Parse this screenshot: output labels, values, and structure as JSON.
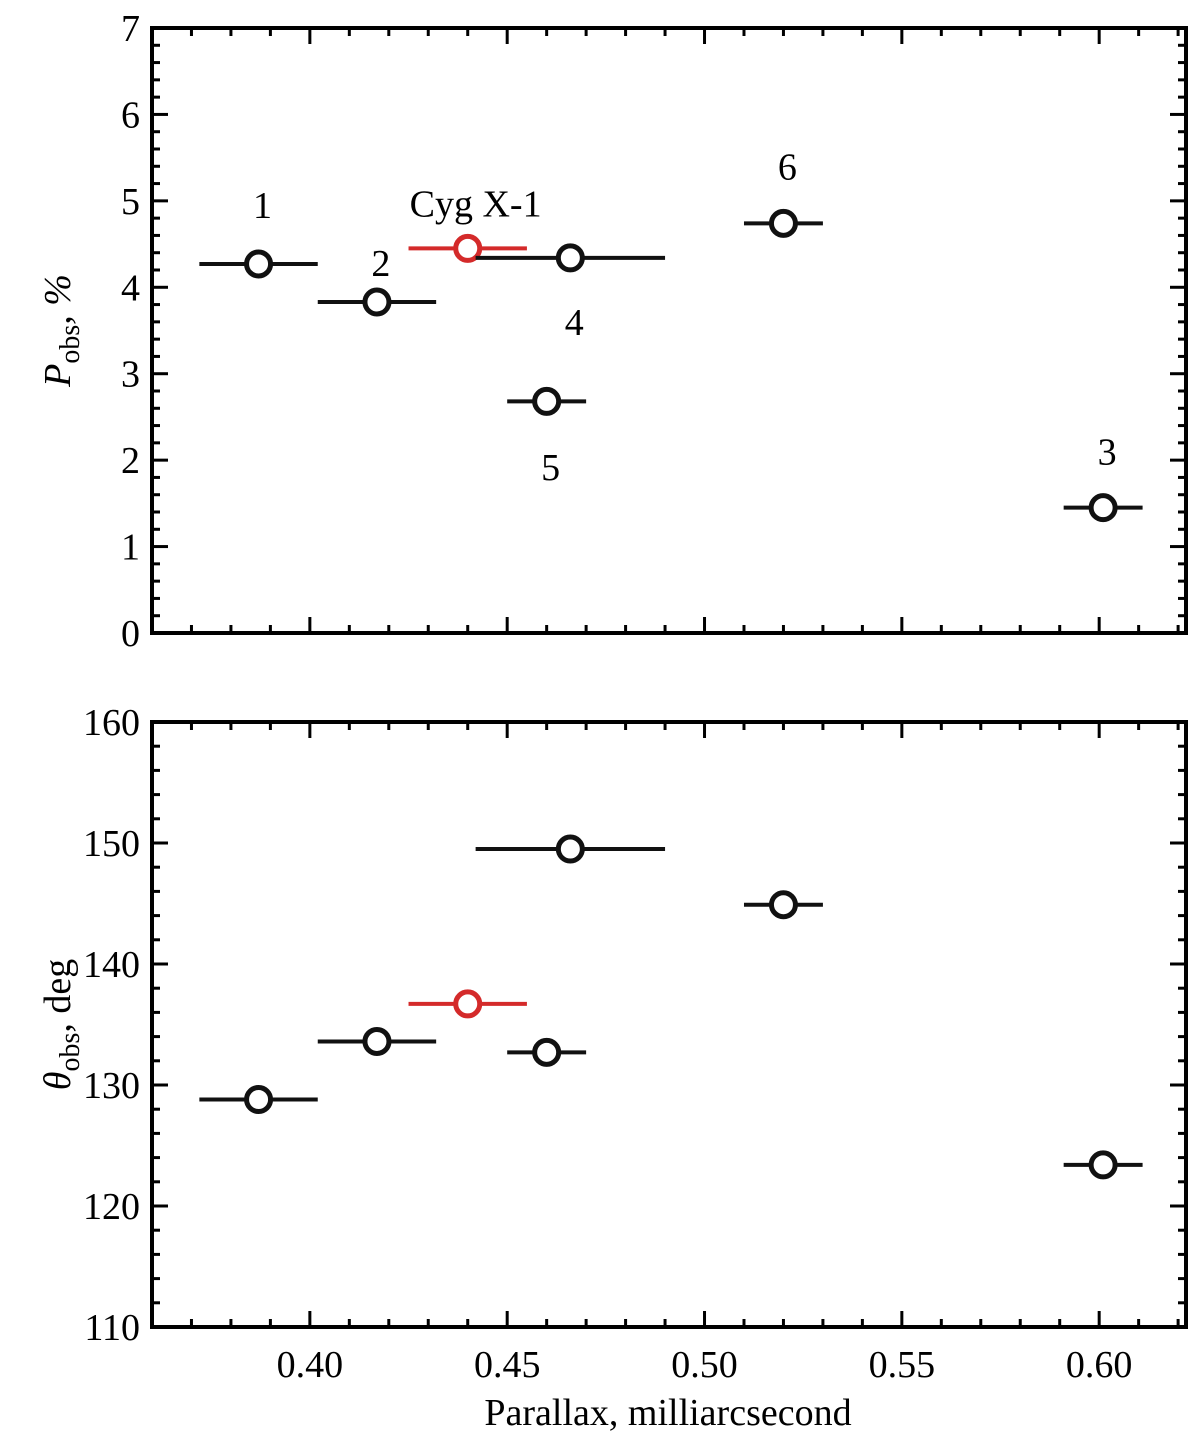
{
  "chart_data": [
    {
      "type": "scatter",
      "panel": "top",
      "ylabel": {
        "main": "P",
        "sub": "obs",
        "rest": ", %"
      },
      "xlim": [
        0.36,
        0.622
      ],
      "ylim": [
        0,
        7
      ],
      "yticks": [
        0,
        1,
        2,
        3,
        4,
        5,
        6,
        7
      ],
      "xticks": [
        0.4,
        0.45,
        0.5,
        0.55,
        0.6
      ],
      "points": [
        {
          "label": "1",
          "x": 0.387,
          "xerr_lo": 0.015,
          "xerr_hi": 0.015,
          "y": 4.27,
          "color": "#111111"
        },
        {
          "label": "2",
          "x": 0.417,
          "xerr_lo": 0.015,
          "xerr_hi": 0.015,
          "y": 3.83,
          "color": "#111111"
        },
        {
          "label": "Cyg X-1",
          "x": 0.44,
          "xerr_lo": 0.015,
          "xerr_hi": 0.015,
          "y": 4.45,
          "color": "#d42a2a"
        },
        {
          "label": "4",
          "x": 0.466,
          "xerr_lo": 0.024,
          "xerr_hi": 0.024,
          "y": 4.34,
          "color": "#111111"
        },
        {
          "label": "5",
          "x": 0.46,
          "xerr_lo": 0.01,
          "xerr_hi": 0.01,
          "y": 2.68,
          "color": "#111111"
        },
        {
          "label": "6",
          "x": 0.52,
          "xerr_lo": 0.01,
          "xerr_hi": 0.01,
          "y": 4.74,
          "color": "#111111"
        },
        {
          "label": "3",
          "x": 0.601,
          "xerr_lo": 0.01,
          "xerr_hi": 0.01,
          "y": 1.45,
          "color": "#111111"
        }
      ],
      "annotations": [
        {
          "text": "1",
          "x": 0.388,
          "y": 4.95
        },
        {
          "text": "2",
          "x": 0.418,
          "y": 4.28
        },
        {
          "text": "Cyg X-1",
          "x": 0.442,
          "y": 4.97
        },
        {
          "text": "4",
          "x": 0.467,
          "y": 3.6
        },
        {
          "text": "5",
          "x": 0.461,
          "y": 1.92
        },
        {
          "text": "6",
          "x": 0.521,
          "y": 5.4
        },
        {
          "text": "3",
          "x": 0.602,
          "y": 2.1
        }
      ]
    },
    {
      "type": "scatter",
      "panel": "bottom",
      "ylabel": {
        "main": "θ",
        "sub": "obs",
        "rest": ", deg"
      },
      "xlabel": "Parallax, milliarcsecond",
      "xlim": [
        0.36,
        0.622
      ],
      "ylim": [
        110,
        160
      ],
      "yticks": [
        110,
        120,
        130,
        140,
        150,
        160
      ],
      "xticks": [
        0.4,
        0.45,
        0.5,
        0.55,
        0.6
      ],
      "xticklabels": [
        "0.40",
        "0.45",
        "0.50",
        "0.55",
        "0.60"
      ],
      "points": [
        {
          "label": "1",
          "x": 0.387,
          "xerr_lo": 0.015,
          "xerr_hi": 0.015,
          "y": 128.8,
          "color": "#111111"
        },
        {
          "label": "2",
          "x": 0.417,
          "xerr_lo": 0.015,
          "xerr_hi": 0.015,
          "y": 133.6,
          "color": "#111111"
        },
        {
          "label": "Cyg X-1",
          "x": 0.44,
          "xerr_lo": 0.015,
          "xerr_hi": 0.015,
          "y": 136.7,
          "color": "#d42a2a"
        },
        {
          "label": "4",
          "x": 0.466,
          "xerr_lo": 0.024,
          "xerr_hi": 0.024,
          "y": 149.5,
          "color": "#111111"
        },
        {
          "label": "5",
          "x": 0.46,
          "xerr_lo": 0.01,
          "xerr_hi": 0.01,
          "y": 132.7,
          "color": "#111111"
        },
        {
          "label": "6",
          "x": 0.52,
          "xerr_lo": 0.01,
          "xerr_hi": 0.01,
          "y": 144.9,
          "color": "#111111"
        },
        {
          "label": "3",
          "x": 0.601,
          "xerr_lo": 0.01,
          "xerr_hi": 0.01,
          "y": 123.4,
          "color": "#111111"
        }
      ]
    }
  ]
}
